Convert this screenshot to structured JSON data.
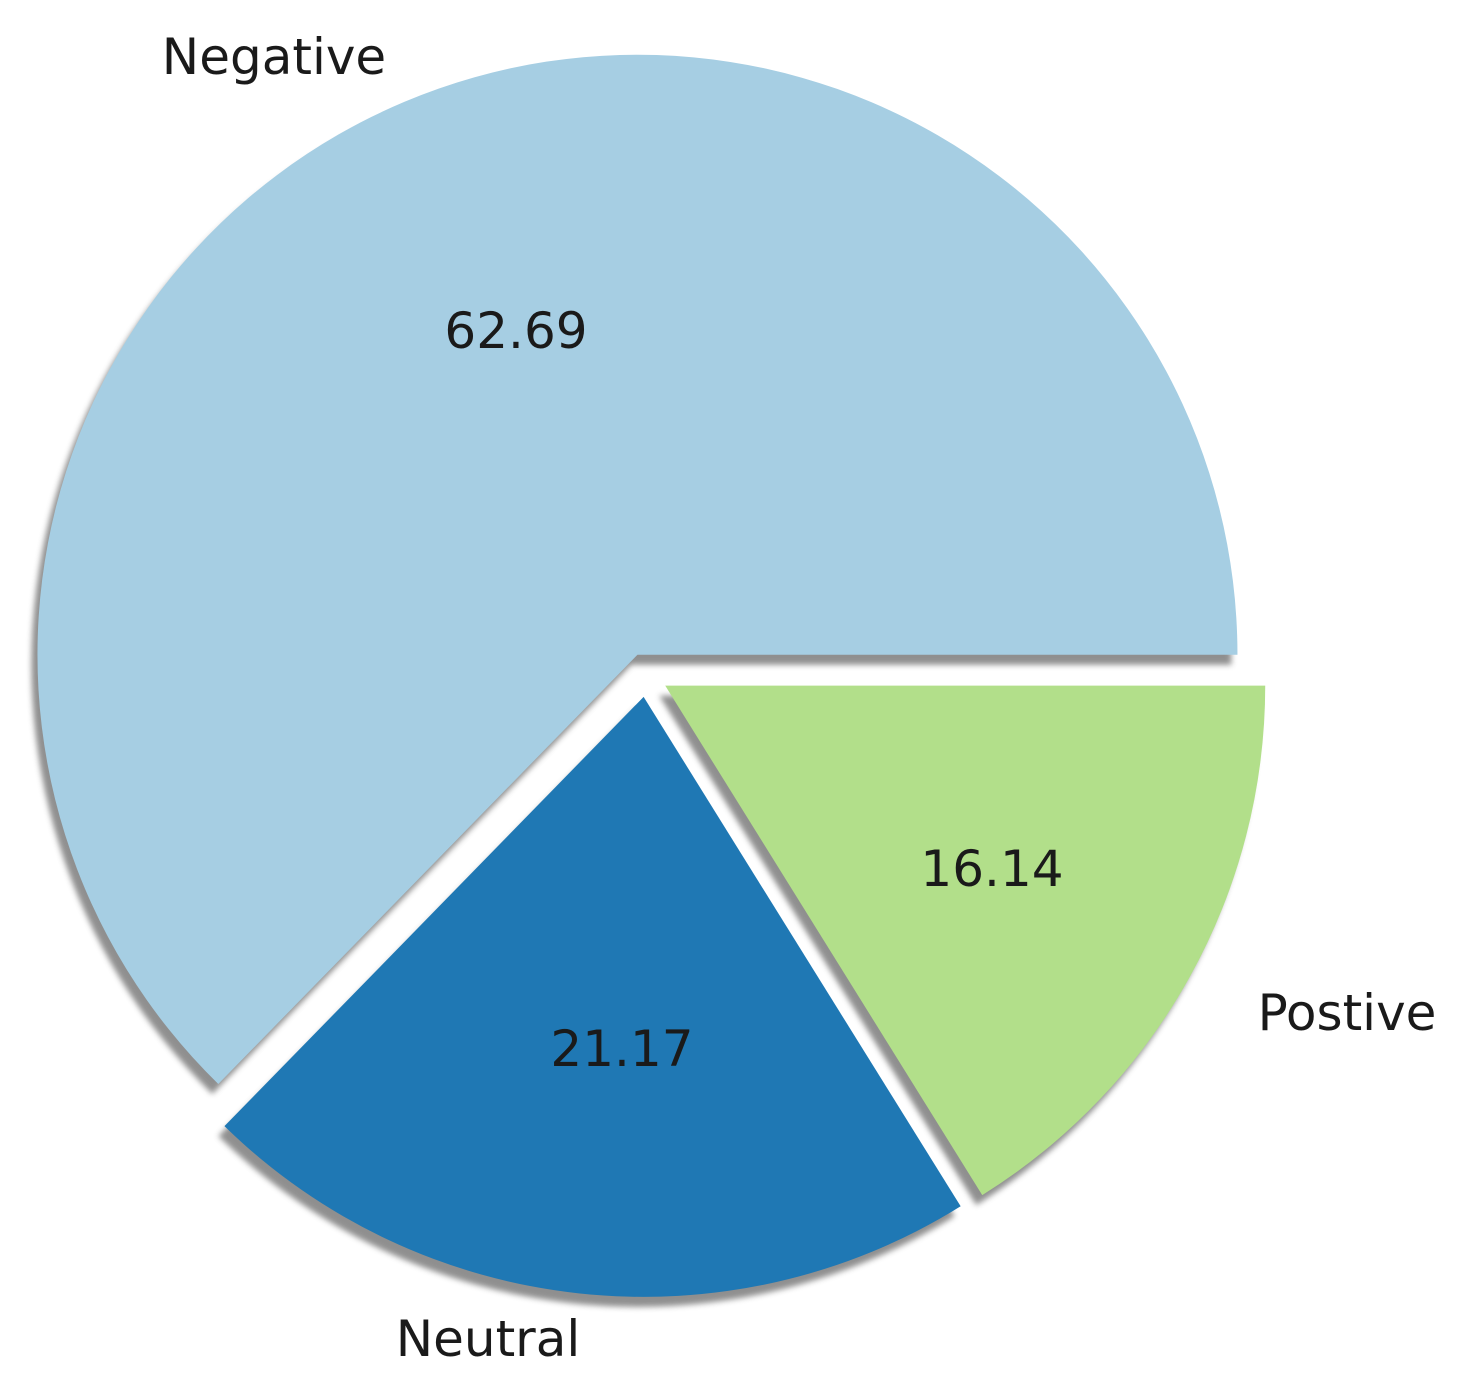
{
  "chart_data": {
    "type": "pie",
    "title": "",
    "labels": [
      "Negative",
      "Neutral",
      "Postive"
    ],
    "values": [
      62.69,
      21.17,
      16.14
    ],
    "value_labels": [
      "62.69",
      "21.17",
      "16.14"
    ],
    "colors": [
      "#a6cee3",
      "#1f78b4",
      "#b2df8a"
    ],
    "shadow": true,
    "exploded": true,
    "legend": "none"
  }
}
